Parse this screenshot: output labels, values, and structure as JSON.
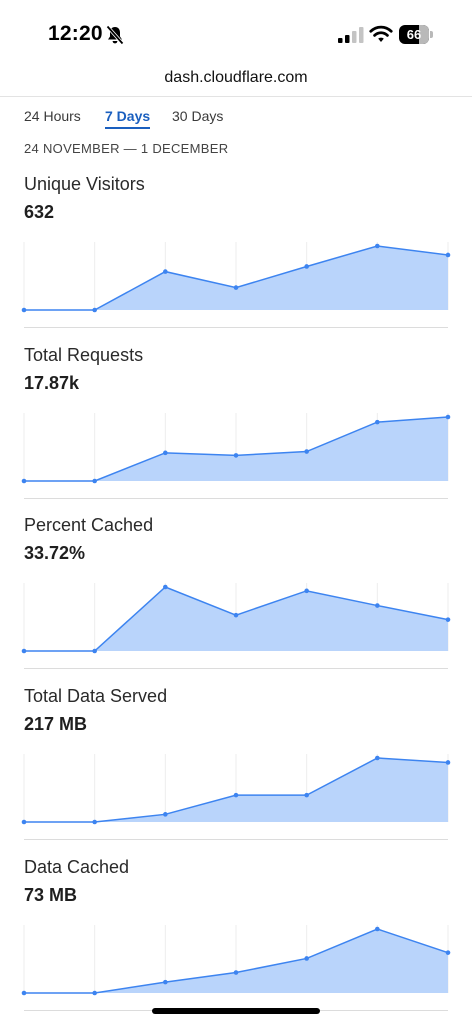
{
  "status_bar": {
    "time": "12:20",
    "battery_percent": "66",
    "battery_level": 0.66,
    "signal_bars": 2,
    "icons": [
      "bell-slash-icon",
      "signal-icon",
      "wifi-icon",
      "battery-icon"
    ]
  },
  "browser": {
    "url": "dash.cloudflare.com"
  },
  "tabs": [
    {
      "label": "24 Hours",
      "active": false
    },
    {
      "label": "7 Days",
      "active": true
    },
    {
      "label": "30 Days",
      "active": false
    }
  ],
  "date_range": "24 NOVEMBER — 1 DECEMBER",
  "colors": {
    "accent": "#1a5fbf",
    "sparkline_fill": "#b9d4fb",
    "sparkline_line": "#3d84f0"
  },
  "metrics": [
    {
      "label": "Unique Visitors",
      "value": "632"
    },
    {
      "label": "Total Requests",
      "value": "17.87k"
    },
    {
      "label": "Percent Cached",
      "value": "33.72%"
    },
    {
      "label": "Total Data Served",
      "value": "217 MB"
    },
    {
      "label": "Data Cached",
      "value": "73 MB"
    }
  ],
  "chart_data": [
    {
      "type": "area",
      "series": [
        {
          "values": [
            0,
            0,
            0.6,
            0.35,
            0.68,
            1.0,
            0.86
          ]
        }
      ],
      "ylim": [
        0,
        1
      ],
      "grid": true
    },
    {
      "type": "area",
      "series": [
        {
          "values": [
            0,
            0,
            0.44,
            0.4,
            0.46,
            0.92,
            1.0
          ]
        }
      ],
      "ylim": [
        0,
        1
      ],
      "grid": true
    },
    {
      "type": "area",
      "series": [
        {
          "values": [
            0,
            0,
            1.0,
            0.56,
            0.94,
            0.71,
            0.49
          ]
        }
      ],
      "ylim": [
        0,
        1
      ],
      "grid": true
    },
    {
      "type": "area",
      "series": [
        {
          "values": [
            0,
            0,
            0.12,
            0.42,
            0.42,
            1.0,
            0.93
          ]
        }
      ],
      "ylim": [
        0,
        1
      ],
      "grid": true
    },
    {
      "type": "area",
      "series": [
        {
          "values": [
            0,
            0,
            0.17,
            0.32,
            0.54,
            1.0,
            0.63
          ]
        }
      ],
      "ylim": [
        0,
        1
      ],
      "grid": true
    }
  ]
}
